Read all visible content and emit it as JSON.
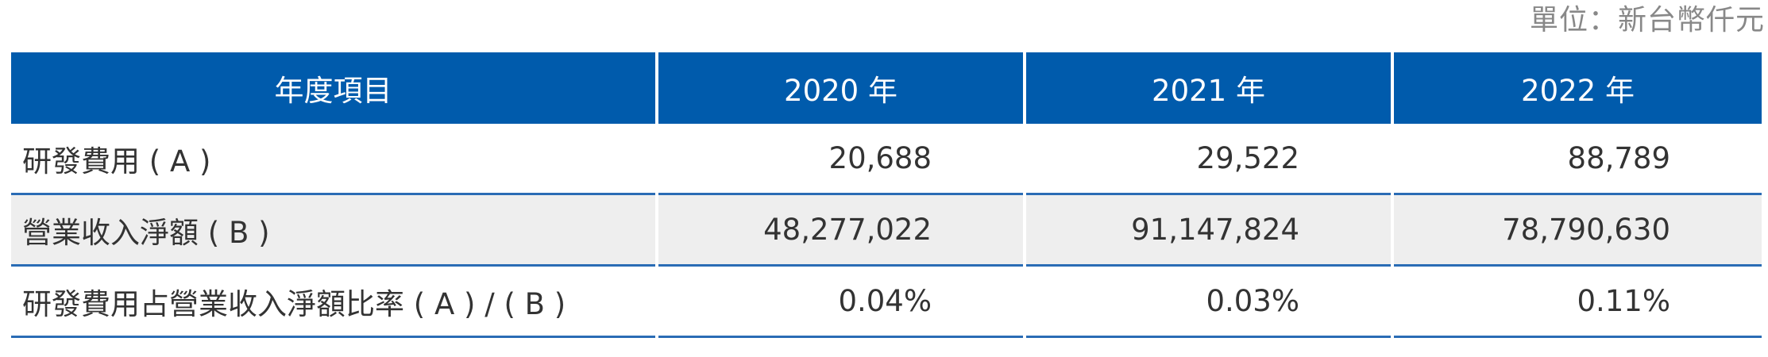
{
  "unit_note": "單位：新台幣仟元",
  "table": {
    "headers": [
      "年度項目",
      "2020 年",
      "2021 年",
      "2022 年"
    ],
    "rows": [
      {
        "label": "研發費用 ( A )",
        "values": [
          "20,688",
          "29,522",
          "88,789"
        ]
      },
      {
        "label": "營業收入淨額 ( B )",
        "values": [
          "48,277,022",
          "91,147,824",
          "78,790,630"
        ]
      },
      {
        "label": "研發費用占營業收入淨額比率 ( A ) / ( B )",
        "values": [
          "0.04%",
          "0.03%",
          "0.11%"
        ]
      }
    ]
  },
  "colors": {
    "header_bg": "#005bac",
    "header_text": "#ffffff",
    "alt_row_bg": "#eeeeee",
    "row_divider": "#2a6cb5",
    "unit_text": "#888888"
  }
}
